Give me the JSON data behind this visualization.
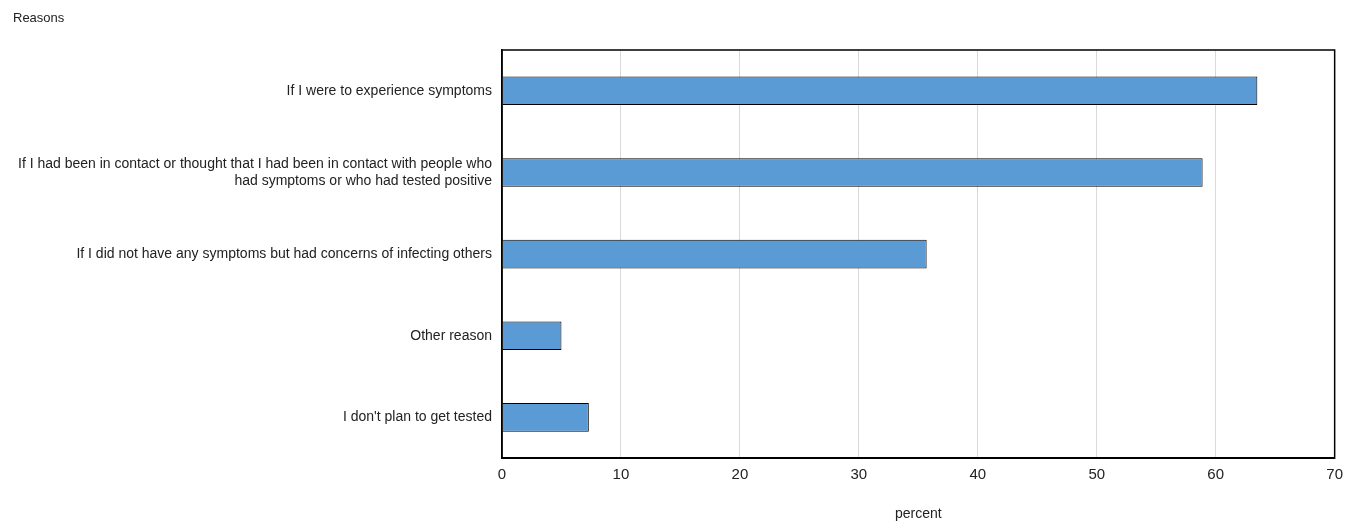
{
  "chart_data": {
    "type": "bar",
    "orientation": "horizontal",
    "ylabel": "Reasons",
    "xlabel": "percent",
    "categories": [
      "If I were to experience symptoms",
      "If I had been in contact or thought that I had been in contact with people who had symptoms or who had tested positive",
      "If I did not have any symptoms but had concerns of infecting others",
      "Other reason",
      "I don't plan to get tested"
    ],
    "values": [
      63.5,
      58.9,
      35.7,
      5.0,
      7.3
    ],
    "color": "#5b9bd5",
    "xlim": [
      0,
      70
    ],
    "xticks": [
      0,
      10,
      20,
      30,
      40,
      50,
      60,
      70
    ],
    "grid": "x",
    "legend": false
  }
}
